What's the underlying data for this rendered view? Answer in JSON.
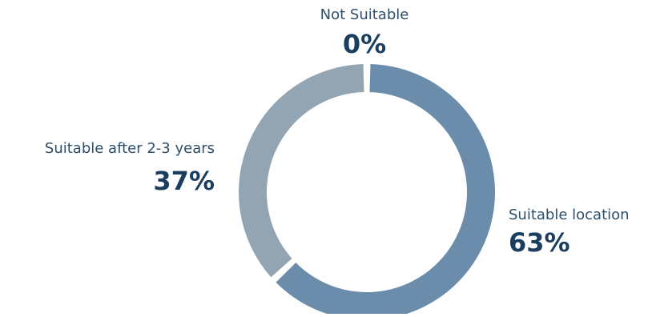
{
  "chart_data": {
    "type": "pie",
    "donut": true,
    "categories": [
      "Not Suitable",
      "Suitable after 2-3 years",
      "Suitable location"
    ],
    "values": [
      0,
      37,
      63
    ],
    "value_labels": [
      "0%",
      "37%",
      "63%"
    ],
    "colors": [
      "#93a5b2",
      "#93a5b2",
      "#6b8caa"
    ],
    "legend": "none"
  }
}
